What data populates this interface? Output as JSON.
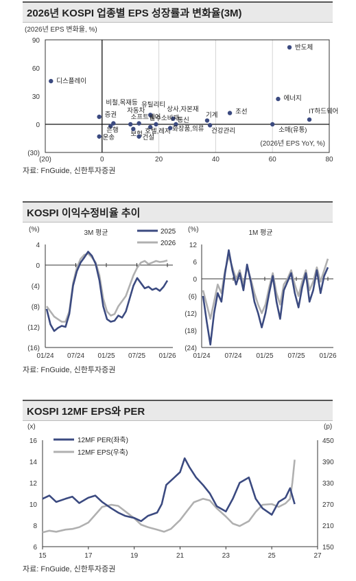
{
  "panel1": {
    "title": "2026년 KOSPI 업종별 EPS 성장률과 변화율(3M)",
    "source": "자료: FnGuide, 신한투자증권",
    "chart_data": {
      "type": "scatter",
      "ylabel": "(2026년 EPS 변화율, %)",
      "xlabel": "(2026년 EPS YoY, %)",
      "xlim": [
        -20,
        80
      ],
      "ylim": [
        -30,
        90
      ],
      "xticks": [
        -20,
        0,
        20,
        40,
        60,
        80
      ],
      "xtick_labels": [
        "(20)",
        "0",
        "20",
        "40",
        "60",
        "80"
      ],
      "yticks": [
        -30,
        0,
        30,
        60,
        90
      ],
      "ytick_labels": [
        "(30)",
        "0",
        "30",
        "60",
        "90"
      ],
      "points": [
        {
          "label": "반도체",
          "x": 66,
          "y": 82
        },
        {
          "label": "디스플레이",
          "x": -18,
          "y": 46
        },
        {
          "label": "에너지",
          "x": 62,
          "y": 27
        },
        {
          "label": "IT하드웨어",
          "x": 73,
          "y": 5
        },
        {
          "label": "조선",
          "x": 45,
          "y": 12
        },
        {
          "label": "기계",
          "x": 37,
          "y": 4
        },
        {
          "label": "비철,목재등",
          "x": 4,
          "y": 1
        },
        {
          "label": "증권",
          "x": -1,
          "y": 8
        },
        {
          "label": "자동차",
          "x": 10,
          "y": 0
        },
        {
          "label": "소프트웨어",
          "x": 13,
          "y": 1
        },
        {
          "label": "유틸리티",
          "x": 17,
          "y": 10
        },
        {
          "label": "상사,자본재",
          "x": 25,
          "y": 6
        },
        {
          "label": "필수소비재",
          "x": 19,
          "y": 0
        },
        {
          "label": "통신",
          "x": 26,
          "y": 0
        },
        {
          "label": "은행",
          "x": 3,
          "y": -2
        },
        {
          "label": "운송",
          "x": -1,
          "y": -13
        },
        {
          "label": "보험",
          "x": 11,
          "y": -5
        },
        {
          "label": "호텔,레저",
          "x": 17,
          "y": -3
        },
        {
          "label": "건설",
          "x": 13,
          "y": -13
        },
        {
          "label": "화장품,의류",
          "x": 24,
          "y": -4
        },
        {
          "label": "건강관리",
          "x": 38,
          "y": -1
        },
        {
          "label": "소매(유통)",
          "x": 60,
          "y": 0
        }
      ]
    }
  },
  "panel2": {
    "title": "KOSPI 이익수정비율 추이",
    "source": "자료: FnGuide, 신한투자증권",
    "chart_data": [
      {
        "type": "line",
        "title": "3M 평균",
        "unit": "(%)",
        "ylim": [
          -16,
          4
        ],
        "yticks": [
          4,
          0,
          -4,
          -8,
          -12,
          -16
        ],
        "ytick_labels": [
          "4",
          "0",
          "(4)",
          "(8)",
          "(12)",
          "(16)"
        ],
        "xtick_labels": [
          "01/24",
          "07/24",
          "01/25",
          "07/25",
          "01/26"
        ],
        "x_start": "2024-01",
        "x_end": "2026-01",
        "series": [
          {
            "name": "2025",
            "color": "#3b4a80",
            "values": [
              -8.5,
              -11.5,
              -12.8,
              -12.2,
              -11.8,
              -12.0,
              -9.5,
              -4.0,
              -1.2,
              0.5,
              1.5,
              2.6,
              1.8,
              0.2,
              -3.0,
              -8.0,
              -10.5,
              -11.0,
              -10.8,
              -9.8,
              -10.2,
              -9.0,
              -6.5,
              -4.0,
              -2.5,
              -3.5,
              -4.5,
              -4.2,
              -4.8,
              -4.5,
              -5.0,
              -4.2,
              -3.0
            ]
          },
          {
            "name": "2026",
            "color": "#b0b0b0",
            "values": [
              -8.0,
              -9.0,
              -10.0,
              -10.5,
              -11.0,
              -11.0,
              -9.0,
              -3.5,
              -0.5,
              1.2,
              2.0,
              2.2,
              1.5,
              0.5,
              -2.0,
              -6.5,
              -9.0,
              -9.8,
              -9.5,
              -8.0,
              -7.0,
              -6.0,
              -4.0,
              -2.0,
              -0.5,
              0.5,
              0.8,
              0.2,
              0.5,
              0.8,
              0.6,
              0.7,
              0.9
            ]
          }
        ]
      },
      {
        "type": "line",
        "title": "1M 평균",
        "unit": "(%)",
        "ylim": [
          -24,
          12
        ],
        "yticks": [
          12,
          6,
          0,
          -6,
          -12,
          -18,
          -24
        ],
        "ytick_labels": [
          "12",
          "6",
          "0",
          "(6)",
          "(12)",
          "(18)",
          "(24)"
        ],
        "xtick_labels": [
          "01/24",
          "07/24",
          "01/25",
          "07/25",
          "01/26"
        ],
        "x_start": "2024-01",
        "x_end": "2026-01",
        "series": [
          {
            "name": "2025",
            "color": "#3b4a80",
            "values": [
              -6,
              -15,
              -23,
              -12,
              -5,
              -8,
              2,
              10,
              3,
              -2,
              2,
              -4,
              5,
              -1,
              -8,
              -12,
              -17,
              -12,
              -5,
              1,
              -8,
              -14,
              -4,
              -1,
              2,
              -5,
              -10,
              -3,
              2,
              -8,
              -4,
              3,
              -5,
              1,
              4
            ]
          },
          {
            "name": "2026",
            "color": "#b0b0b0",
            "values": [
              -4,
              -9,
              -14,
              -8,
              -2,
              -5,
              3,
              8,
              4,
              0,
              3,
              -2,
              4,
              0,
              -5,
              -9,
              -12,
              -9,
              -3,
              2,
              -5,
              -9,
              -2,
              0,
              3,
              -2,
              -6,
              -1,
              3,
              -4,
              -1,
              4,
              -1,
              3,
              7
            ]
          }
        ]
      }
    ]
  },
  "panel3": {
    "title": "KOSPI 12MF EPS와 PER",
    "source": "자료: FnGuide, 신한투자증권",
    "chart_data": {
      "type": "line",
      "unit_left": "(x)",
      "unit_right": "(p)",
      "ylim_left": [
        6,
        16
      ],
      "yticks_left": [
        6,
        8,
        10,
        12,
        14,
        16
      ],
      "ylim_right": [
        150,
        450
      ],
      "yticks_right": [
        150,
        210,
        270,
        330,
        390,
        450
      ],
      "xlim": [
        15,
        27
      ],
      "xticks": [
        15,
        17,
        19,
        21,
        23,
        25,
        27
      ],
      "series": [
        {
          "name": "12MF PER(좌축)",
          "axis": "left",
          "color": "#3b4a80",
          "x": [
            15.0,
            15.3,
            15.6,
            16.0,
            16.3,
            16.6,
            17.0,
            17.3,
            17.6,
            18.0,
            18.3,
            18.6,
            19.0,
            19.3,
            19.6,
            20.0,
            20.2,
            20.4,
            20.7,
            21.0,
            21.2,
            21.4,
            21.7,
            22.0,
            22.3,
            22.6,
            23.0,
            23.3,
            23.6,
            24.0,
            24.3,
            24.6,
            25.0,
            25.3,
            25.6,
            25.8,
            26.0
          ],
          "values": [
            10.5,
            10.8,
            10.2,
            10.5,
            10.7,
            10.1,
            10.6,
            10.8,
            10.2,
            9.6,
            9.2,
            8.9,
            8.7,
            8.4,
            8.9,
            9.2,
            10.0,
            11.8,
            12.4,
            13.0,
            14.3,
            13.5,
            12.5,
            11.8,
            11.0,
            9.8,
            9.3,
            10.5,
            12.0,
            12.5,
            10.5,
            9.6,
            9.0,
            10.2,
            10.6,
            11.5,
            10.0
          ]
        },
        {
          "name": "12MF EPS(우축)",
          "axis": "right",
          "color": "#b0b0b0",
          "x": [
            15.0,
            15.3,
            15.6,
            16.0,
            16.3,
            16.6,
            17.0,
            17.3,
            17.6,
            18.0,
            18.3,
            18.6,
            19.0,
            19.3,
            19.6,
            20.0,
            20.3,
            20.6,
            21.0,
            21.3,
            21.6,
            22.0,
            22.3,
            22.6,
            23.0,
            23.3,
            23.6,
            24.0,
            24.3,
            24.6,
            25.0,
            25.3,
            25.6,
            25.8,
            25.9,
            26.0
          ],
          "values": [
            190,
            195,
            192,
            198,
            200,
            205,
            218,
            240,
            262,
            268,
            265,
            250,
            230,
            212,
            205,
            198,
            192,
            200,
            225,
            250,
            275,
            285,
            280,
            258,
            235,
            215,
            208,
            222,
            248,
            268,
            270,
            262,
            272,
            285,
            330,
            395
          ]
        }
      ]
    }
  }
}
